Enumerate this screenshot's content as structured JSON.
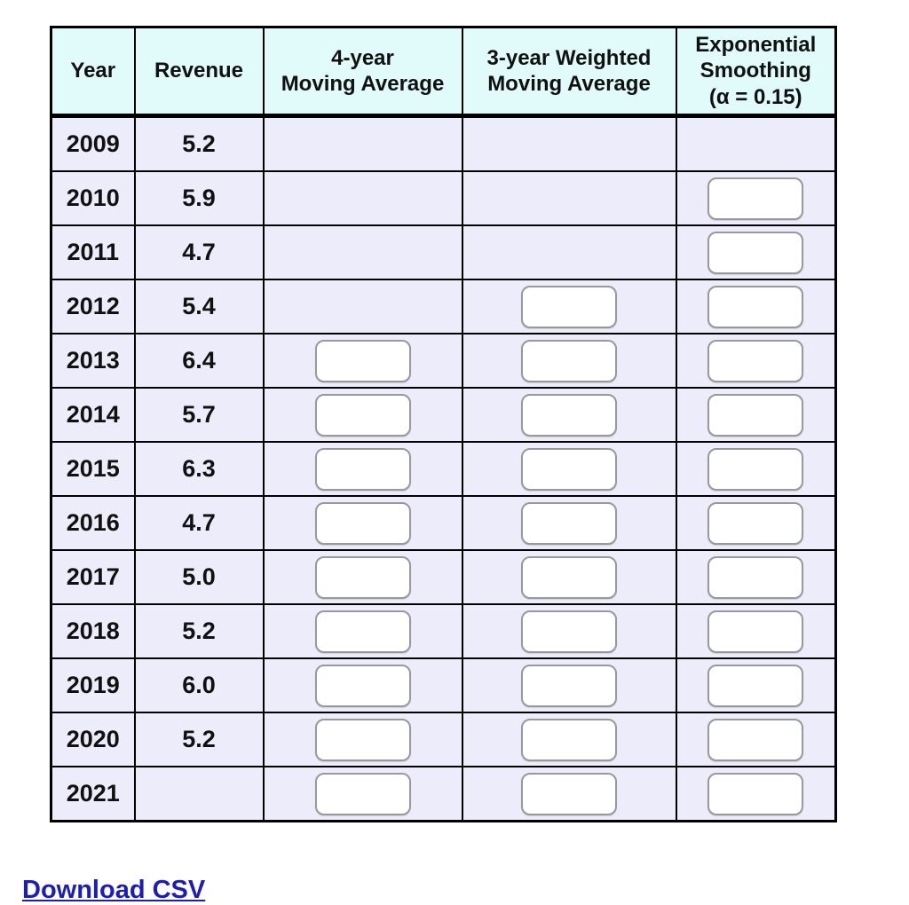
{
  "page": {
    "background": "#ffffff"
  },
  "link": {
    "download_csv": "Download CSV",
    "color": "#1c1cb8"
  },
  "table": {
    "header_bg": "#e1fafa",
    "row_bg": "#ececfa",
    "border_color": "#000000",
    "input_border_color": "#999999",
    "input_bg": "#ffffff",
    "columns": [
      {
        "id": "year",
        "label": "Year"
      },
      {
        "id": "revenue",
        "label": "Revenue"
      },
      {
        "id": "ma4",
        "label": "4-year\nMoving Average"
      },
      {
        "id": "wma3",
        "label": "3-year Weighted\nMoving Average"
      },
      {
        "id": "exp",
        "label": "Exponential\nSmoothing\n(α = 0.15)"
      }
    ],
    "rows": [
      {
        "year": "2009",
        "revenue": "5.2",
        "inputs": {
          "ma4": false,
          "wma3": false,
          "exp": false
        }
      },
      {
        "year": "2010",
        "revenue": "5.9",
        "inputs": {
          "ma4": false,
          "wma3": false,
          "exp": true
        }
      },
      {
        "year": "2011",
        "revenue": "4.7",
        "inputs": {
          "ma4": false,
          "wma3": false,
          "exp": true
        }
      },
      {
        "year": "2012",
        "revenue": "5.4",
        "inputs": {
          "ma4": false,
          "wma3": true,
          "exp": true
        }
      },
      {
        "year": "2013",
        "revenue": "6.4",
        "inputs": {
          "ma4": true,
          "wma3": true,
          "exp": true
        }
      },
      {
        "year": "2014",
        "revenue": "5.7",
        "inputs": {
          "ma4": true,
          "wma3": true,
          "exp": true
        }
      },
      {
        "year": "2015",
        "revenue": "6.3",
        "inputs": {
          "ma4": true,
          "wma3": true,
          "exp": true
        }
      },
      {
        "year": "2016",
        "revenue": "4.7",
        "inputs": {
          "ma4": true,
          "wma3": true,
          "exp": true
        }
      },
      {
        "year": "2017",
        "revenue": "5.0",
        "inputs": {
          "ma4": true,
          "wma3": true,
          "exp": true
        }
      },
      {
        "year": "2018",
        "revenue": "5.2",
        "inputs": {
          "ma4": true,
          "wma3": true,
          "exp": true
        }
      },
      {
        "year": "2019",
        "revenue": "6.0",
        "inputs": {
          "ma4": true,
          "wma3": true,
          "exp": true
        }
      },
      {
        "year": "2020",
        "revenue": "5.2",
        "inputs": {
          "ma4": true,
          "wma3": true,
          "exp": true
        }
      },
      {
        "year": "2021",
        "revenue": "",
        "inputs": {
          "ma4": true,
          "wma3": true,
          "exp": true
        }
      }
    ]
  }
}
